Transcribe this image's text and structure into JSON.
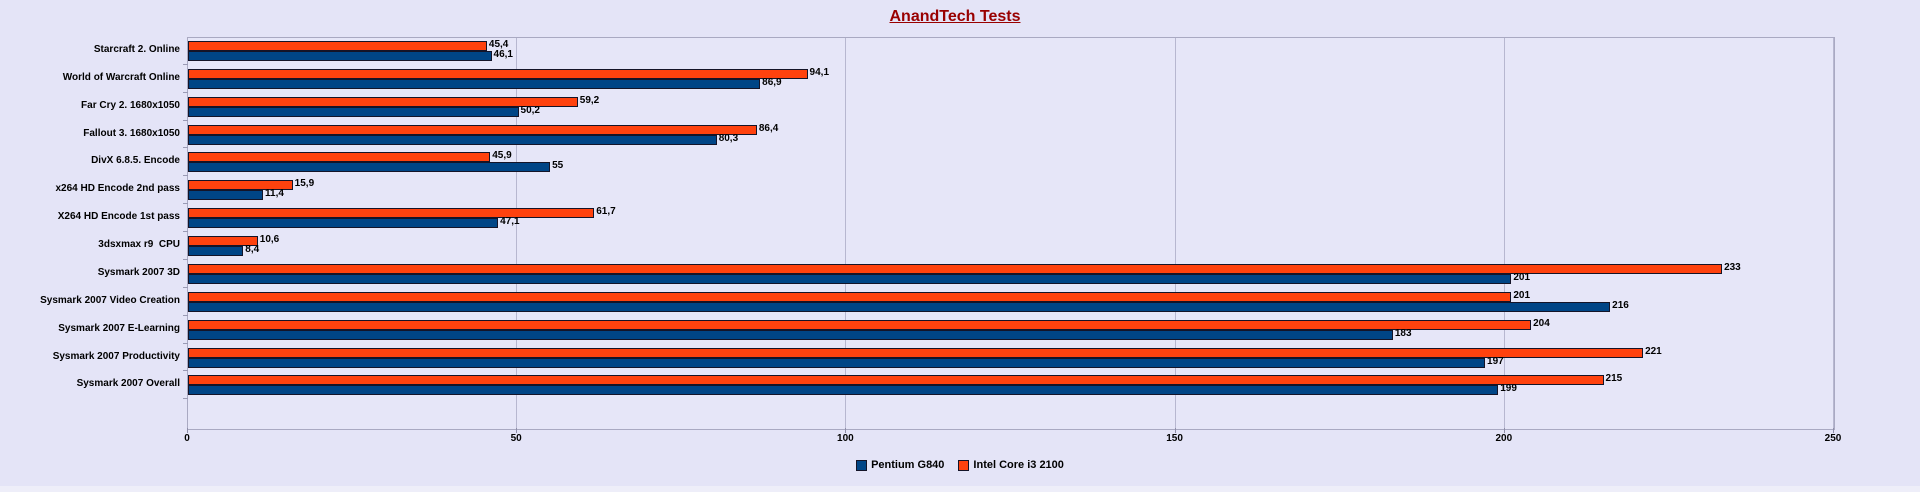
{
  "header": {
    "title": "AnandTech Tests",
    "title_color": "#990000"
  },
  "legend": {
    "items": [
      {
        "label": "Pentium G840",
        "color": "#004586"
      },
      {
        "label": "Intel Core i3 2100",
        "color": "#ff420e"
      }
    ]
  },
  "colors": {
    "pentium_g840_blue": "#004586",
    "core_i3_orange": "#ff420e",
    "background_lavender": "#e4e4f7",
    "title_dark_red": "#990000"
  },
  "chart_data": {
    "type": "bar",
    "orientation": "horizontal",
    "title": "AnandTech Tests",
    "categories": [
      "Starcraft 2. Online",
      "World of Warcraft Online",
      "Far Cry 2. 1680x1050",
      "Fallout 3. 1680x1050",
      "DivX 6.8.5. Encode",
      "x264 HD Encode 2nd pass",
      "X264 HD Encode 1st pass",
      "3dsxmax r9  CPU",
      "Sysmark 2007 3D",
      "Sysmark 2007 Video Creation",
      "Sysmark 2007 E-Learning",
      "Sysmark 2007 Productivity",
      "Sysmark 2007 Overall"
    ],
    "series": [
      {
        "name": "Intel Core i3 2100",
        "color": "#ff420e",
        "pair_position": "top",
        "values": [
          45.4,
          94.1,
          59.2,
          86.4,
          45.9,
          15.9,
          61.7,
          10.6,
          233,
          201,
          204,
          221,
          215
        ],
        "labels": [
          "45,4",
          "94,1",
          "59,2",
          "86,4",
          "45,9",
          "15,9",
          "61,7",
          "10,6",
          "233",
          "201",
          "204",
          "221",
          "215"
        ]
      },
      {
        "name": "Pentium G840",
        "color": "#004586",
        "pair_position": "bottom",
        "values": [
          46.1,
          86.9,
          50.2,
          80.3,
          55,
          11.4,
          47.1,
          8.4,
          201,
          216,
          183,
          197,
          199
        ],
        "labels": [
          "46,1",
          "86,9",
          "50,2",
          "80,3",
          "55",
          "11,4",
          "47,1",
          "8,4",
          "201",
          "216",
          "183",
          "197",
          "199"
        ]
      }
    ],
    "xlim": [
      0,
      250
    ],
    "x_ticks": [
      0,
      50,
      100,
      150,
      200,
      250
    ],
    "x_tick_labels": [
      "0",
      "50",
      "100",
      "150",
      "200",
      "250"
    ],
    "grid": true,
    "legend_position": "bottom"
  }
}
